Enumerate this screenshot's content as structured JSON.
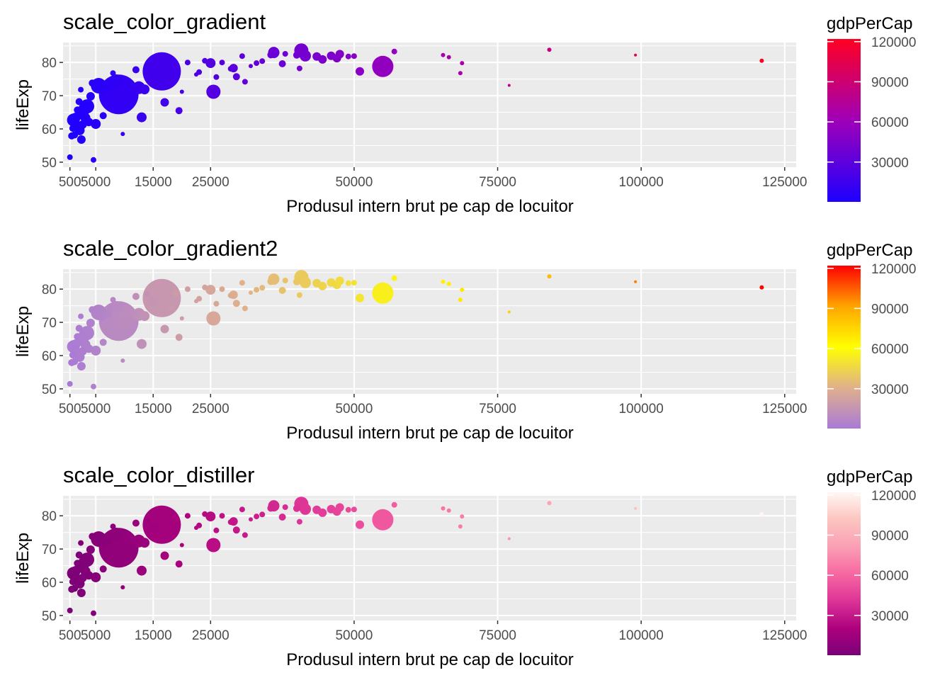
{
  "chart_data": [
    {
      "type": "scatter",
      "title": "scale_color_gradient",
      "xlabel": "Produsul intern brut pe cap de locuitor",
      "ylabel": "lifeExp",
      "xlim": [
        -700,
        127000
      ],
      "ylim": [
        48.5,
        86
      ],
      "xticks": [
        500,
        5000,
        15000,
        25000,
        50000,
        75000,
        100000,
        125000
      ],
      "xtick_labels": [
        "500",
        "5000",
        "15000",
        "25000",
        "50000",
        "75000",
        "100000",
        "125000"
      ],
      "yticks": [
        50,
        60,
        70,
        80
      ],
      "yscale_labels": [
        "50",
        "60",
        "70",
        "80"
      ],
      "legend": {
        "title": "gdpPerCap",
        "breaks": [
          30000,
          60000,
          90000,
          120000
        ],
        "labels": [
          "30000",
          "60000",
          "90000",
          "120000"
        ],
        "colors": [
          "#1e00ff",
          "#9f00b8",
          "#ff0022"
        ]
      }
    },
    {
      "type": "scatter",
      "title": "scale_color_gradient2",
      "xlabel": "Produsul intern brut pe cap de locuitor",
      "ylabel": "lifeExp",
      "xlim": [
        -700,
        127000
      ],
      "ylim": [
        48.5,
        86
      ],
      "xticks": [
        500,
        5000,
        15000,
        25000,
        50000,
        75000,
        100000,
        125000
      ],
      "xtick_labels": [
        "500",
        "5000",
        "15000",
        "25000",
        "50000",
        "75000",
        "100000",
        "125000"
      ],
      "yticks": [
        50,
        60,
        70,
        80
      ],
      "yscale_labels": [
        "50",
        "60",
        "70",
        "80"
      ],
      "legend": {
        "title": "gdpPerCap",
        "breaks": [
          30000,
          60000,
          90000,
          120000
        ],
        "labels": [
          "30000",
          "60000",
          "90000",
          "120000"
        ],
        "colors": [
          "#a97ad6",
          "#e0b08c",
          "#ffff00",
          "#ffa500",
          "#ff0000"
        ]
      }
    },
    {
      "type": "scatter",
      "title": "scale_color_distiller",
      "xlabel": "Produsul intern brut pe cap de locuitor",
      "ylabel": "lifeExp",
      "xlim": [
        -700,
        127000
      ],
      "ylim": [
        48.5,
        86
      ],
      "xticks": [
        500,
        5000,
        15000,
        25000,
        50000,
        75000,
        100000,
        125000
      ],
      "xtick_labels": [
        "500",
        "5000",
        "15000",
        "25000",
        "50000",
        "75000",
        "100000",
        "125000"
      ],
      "yticks": [
        50,
        60,
        70,
        80
      ],
      "yscale_labels": [
        "50",
        "60",
        "70",
        "80"
      ],
      "legend": {
        "title": "gdpPerCap",
        "breaks": [
          30000,
          60000,
          90000,
          120000
        ],
        "labels": [
          "30000",
          "60000",
          "90000",
          "120000"
        ],
        "colors": [
          "#7a0177",
          "#ae017e",
          "#dd3497",
          "#f768a1",
          "#fa9fb5",
          "#fcc5c0",
          "#fff7f3"
        ]
      }
    }
  ],
  "points": [
    {
      "x": 500,
      "y": 51.5,
      "size": 4
    },
    {
      "x": 800,
      "y": 57.9,
      "size": 5
    },
    {
      "x": 1000,
      "y": 60.2,
      "size": 5
    },
    {
      "x": 1100,
      "y": 62.7,
      "size": 9
    },
    {
      "x": 1300,
      "y": 58.2,
      "size": 5
    },
    {
      "x": 1500,
      "y": 63.4,
      "size": 7
    },
    {
      "x": 1700,
      "y": 60.9,
      "size": 6
    },
    {
      "x": 1800,
      "y": 65.7,
      "size": 5
    },
    {
      "x": 2000,
      "y": 64.1,
      "size": 6
    },
    {
      "x": 2100,
      "y": 68.2,
      "size": 5
    },
    {
      "x": 2200,
      "y": 59.6,
      "size": 7
    },
    {
      "x": 2400,
      "y": 71.8,
      "size": 4
    },
    {
      "x": 2500,
      "y": 56.8,
      "size": 6
    },
    {
      "x": 2700,
      "y": 61.3,
      "size": 6
    },
    {
      "x": 2900,
      "y": 66.3,
      "size": 7
    },
    {
      "x": 3000,
      "y": 64.5,
      "size": 6
    },
    {
      "x": 3200,
      "y": 63.3,
      "size": 7
    },
    {
      "x": 3500,
      "y": 66.8,
      "size": 10
    },
    {
      "x": 3800,
      "y": 62.1,
      "size": 6
    },
    {
      "x": 4100,
      "y": 69.8,
      "size": 6
    },
    {
      "x": 4400,
      "y": 73.8,
      "size": 5
    },
    {
      "x": 4600,
      "y": 50.7,
      "size": 4
    },
    {
      "x": 5000,
      "y": 61.5,
      "size": 7
    },
    {
      "x": 5500,
      "y": 73.0,
      "size": 11
    },
    {
      "x": 6000,
      "y": 71.5,
      "size": 5
    },
    {
      "x": 6300,
      "y": 64.0,
      "size": 5
    },
    {
      "x": 7000,
      "y": 72.5,
      "size": 6
    },
    {
      "x": 7500,
      "y": 74.2,
      "size": 4
    },
    {
      "x": 8000,
      "y": 76.8,
      "size": 4
    },
    {
      "x": 8500,
      "y": 74.5,
      "size": 9
    },
    {
      "x": 9000,
      "y": 70.4,
      "size": 28
    },
    {
      "x": 9700,
      "y": 58.5,
      "size": 3
    },
    {
      "x": 10000,
      "y": 71.0,
      "size": 14
    },
    {
      "x": 10500,
      "y": 73.5,
      "size": 8
    },
    {
      "x": 11500,
      "y": 72.9,
      "size": 5
    },
    {
      "x": 12000,
      "y": 77.8,
      "size": 5
    },
    {
      "x": 12500,
      "y": 72.4,
      "size": 9
    },
    {
      "x": 13000,
      "y": 63.5,
      "size": 7
    },
    {
      "x": 13500,
      "y": 71.9,
      "size": 7
    },
    {
      "x": 14000,
      "y": 78.5,
      "size": 4
    },
    {
      "x": 15000,
      "y": 76.3,
      "size": 7
    },
    {
      "x": 15500,
      "y": 76.5,
      "size": 5
    },
    {
      "x": 16500,
      "y": 77.3,
      "size": 27
    },
    {
      "x": 17000,
      "y": 68.0,
      "size": 6
    },
    {
      "x": 18000,
      "y": 74.6,
      "size": 4
    },
    {
      "x": 19000,
      "y": 78.8,
      "size": 5
    },
    {
      "x": 19500,
      "y": 65.5,
      "size": 5
    },
    {
      "x": 20000,
      "y": 71.2,
      "size": 3
    },
    {
      "x": 21000,
      "y": 80.0,
      "size": 4
    },
    {
      "x": 22500,
      "y": 76.4,
      "size": 3
    },
    {
      "x": 23000,
      "y": 77.1,
      "size": 4
    },
    {
      "x": 24000,
      "y": 80.5,
      "size": 4
    },
    {
      "x": 25000,
      "y": 79.8,
      "size": 7
    },
    {
      "x": 25500,
      "y": 71.2,
      "size": 10
    },
    {
      "x": 26000,
      "y": 75.6,
      "size": 4
    },
    {
      "x": 27000,
      "y": 80.0,
      "size": 4
    },
    {
      "x": 28500,
      "y": 78.1,
      "size": 4
    },
    {
      "x": 29000,
      "y": 78.3,
      "size": 6
    },
    {
      "x": 29500,
      "y": 75.7,
      "size": 5
    },
    {
      "x": 30500,
      "y": 81.9,
      "size": 4
    },
    {
      "x": 31000,
      "y": 74.2,
      "size": 4
    },
    {
      "x": 32000,
      "y": 78.9,
      "size": 3
    },
    {
      "x": 33000,
      "y": 79.8,
      "size": 4
    },
    {
      "x": 34000,
      "y": 80.4,
      "size": 4
    },
    {
      "x": 35500,
      "y": 82.3,
      "size": 5
    },
    {
      "x": 36000,
      "y": 83.0,
      "size": 8
    },
    {
      "x": 37500,
      "y": 79.6,
      "size": 5
    },
    {
      "x": 38000,
      "y": 82.6,
      "size": 4
    },
    {
      "x": 40000,
      "y": 82.2,
      "size": 5
    },
    {
      "x": 40500,
      "y": 78.2,
      "size": 4
    },
    {
      "x": 40800,
      "y": 83.6,
      "size": 10
    },
    {
      "x": 41500,
      "y": 82.0,
      "size": 8
    },
    {
      "x": 43500,
      "y": 81.8,
      "size": 6
    },
    {
      "x": 44500,
      "y": 80.9,
      "size": 6
    },
    {
      "x": 46000,
      "y": 82.0,
      "size": 6
    },
    {
      "x": 47000,
      "y": 81.3,
      "size": 6
    },
    {
      "x": 47500,
      "y": 82.5,
      "size": 6
    },
    {
      "x": 49000,
      "y": 81.8,
      "size": 4
    },
    {
      "x": 50000,
      "y": 81.9,
      "size": 4
    },
    {
      "x": 51000,
      "y": 77.3,
      "size": 6
    },
    {
      "x": 55000,
      "y": 78.8,
      "size": 15
    },
    {
      "x": 57000,
      "y": 83.3,
      "size": 4
    },
    {
      "x": 65500,
      "y": 82.2,
      "size": 3
    },
    {
      "x": 66500,
      "y": 81.6,
      "size": 3
    },
    {
      "x": 68500,
      "y": 76.8,
      "size": 3
    },
    {
      "x": 68800,
      "y": 79.8,
      "size": 3
    },
    {
      "x": 77000,
      "y": 73.1,
      "size": 2
    },
    {
      "x": 84000,
      "y": 83.8,
      "size": 3
    },
    {
      "x": 99000,
      "y": 82.2,
      "size": 2
    },
    {
      "x": 121000,
      "y": 80.5,
      "size": 3
    }
  ]
}
